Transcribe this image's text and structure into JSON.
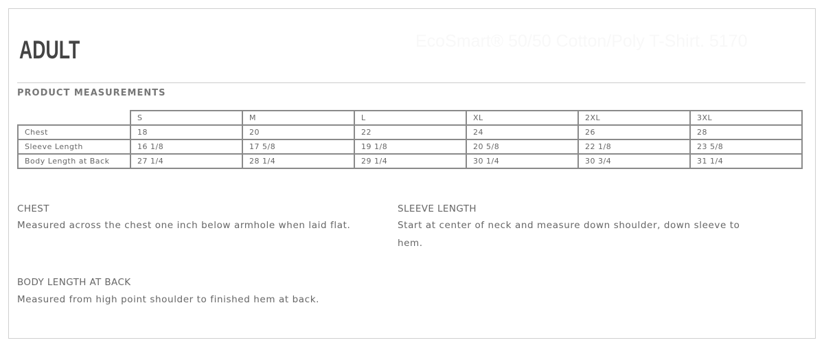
{
  "header": {
    "title": "ADULT",
    "product_title": "EcoSmart® 50/50 Cotton/Poly T-Shirt. 5170"
  },
  "section_title": "PRODUCT MEASUREMENTS",
  "table": {
    "sizes": [
      "S",
      "M",
      "L",
      "XL",
      "2XL",
      "3XL"
    ],
    "rows": [
      {
        "label": "Chest",
        "values": [
          "18",
          "20",
          "22",
          "24",
          "26",
          "28"
        ]
      },
      {
        "label": "Sleeve Length",
        "values": [
          "16 1/8",
          "17 5/8",
          "19 1/8",
          "20 5/8",
          "22 1/8",
          "23 5/8"
        ]
      },
      {
        "label": "Body Length at Back",
        "values": [
          "27 1/4",
          "28 1/4",
          "29 1/4",
          "30 1/4",
          "30 3/4",
          "31 1/4"
        ]
      }
    ]
  },
  "definitions": [
    {
      "title": "CHEST",
      "text": "Measured across the chest one inch below armhole when laid flat."
    },
    {
      "title": "SLEEVE LENGTH",
      "text": "Start at center of neck and measure down shoulder, down sleeve to hem."
    },
    {
      "title": "BODY LENGTH AT BACK",
      "text": "Measured from high point shoulder to finished hem at back."
    }
  ]
}
